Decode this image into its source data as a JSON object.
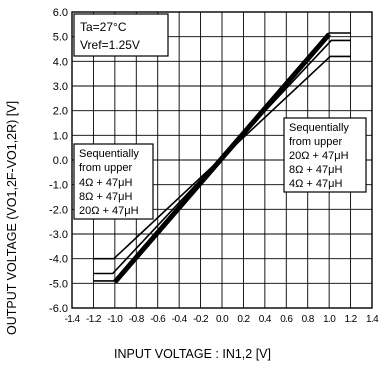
{
  "chart_data": {
    "type": "line",
    "xlabel": "INPUT  VOLTAGE  : IN1,2   [V]",
    "ylabel": "OUTPUT VOLTAGE   (VO1,2F-VO1,2R)   [V]",
    "xlim": [
      -1.4,
      1.4
    ],
    "ylim": [
      -6.0,
      6.0
    ],
    "x_ticks": [
      "-1.4",
      "-1.2",
      "-1.0",
      "-0.8",
      "-0.6",
      "-0.4",
      "-0.2",
      "0.0",
      "0.2",
      "0.4",
      "0.6",
      "0.8",
      "1.0",
      "1.2",
      "1.4"
    ],
    "y_ticks": [
      "6.0",
      "5.0",
      "4.0",
      "3.0",
      "2.0",
      "1.0",
      "0.0",
      "-1.0",
      "-2.0",
      "-3.0",
      "-4.0",
      "-5.0",
      "-6.0"
    ],
    "grid": true,
    "conditions": [
      "Ta=27°C",
      "Vref=1.25V"
    ],
    "annotations": [
      {
        "lines": [
          "Sequentially",
          "from upper",
          "4Ω + 47μH",
          "8Ω + 47μH",
          "20Ω + 47μH"
        ]
      },
      {
        "lines": [
          "Sequentially",
          "from upper",
          "20Ω + 47μH",
          "8Ω + 47μH",
          "4Ω + 47μH"
        ]
      }
    ],
    "series": [
      {
        "x": [
          -1.4,
          -1.02,
          1.02,
          1.4
        ],
        "y": [
          -4.6,
          -4.6,
          4.6,
          4.6
        ],
        "color": "#000000"
      },
      {
        "x": [
          -1.4,
          -1.02,
          1.02,
          1.4
        ],
        "y": [
          -4.8,
          -4.8,
          4.8,
          4.8
        ],
        "color": "#000000"
      },
      {
        "x": [
          -1.4,
          -1.02,
          1.02,
          1.4
        ],
        "y": [
          -5.0,
          -5.0,
          5.0,
          5.0
        ],
        "color": "#000000"
      }
    ],
    "series_visible": [
      {
        "x": [
          -1.2,
          -1.01,
          1.01,
          1.2
        ],
        "y": [
          -4.0,
          -4.0,
          4.2,
          4.2
        ]
      },
      {
        "x": [
          -1.2,
          -1.02,
          1.02,
          1.2
        ],
        "y": [
          -4.6,
          -4.6,
          4.85,
          4.85
        ]
      },
      {
        "x": [
          -1.2,
          -1.0,
          1.0,
          1.2
        ],
        "y": [
          -4.9,
          -4.9,
          5.15,
          5.15
        ]
      }
    ]
  }
}
